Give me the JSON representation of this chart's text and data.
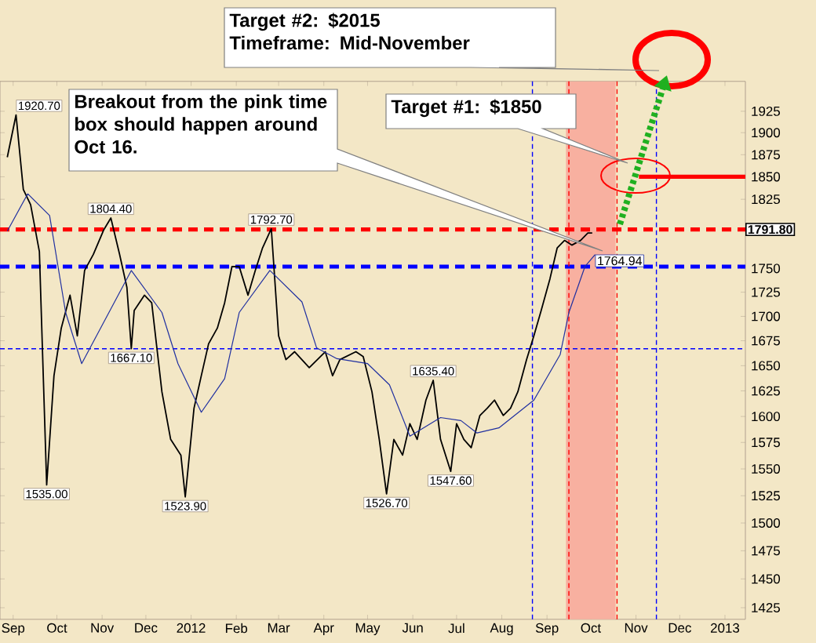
{
  "chart_data": {
    "type": "line",
    "log": true,
    "ylim": [
      1415,
      1960
    ],
    "yticks": [
      1425,
      1450,
      1475,
      1500,
      1525,
      1550,
      1575,
      1600,
      1625,
      1650,
      1675,
      1700,
      1725,
      1750,
      1825,
      1850,
      1875,
      1900,
      1925
    ],
    "xlim": [
      "2011-09-01",
      "2013-01-24"
    ],
    "xticks": [
      {
        "value": "2011-09-10",
        "label": "Sep"
      },
      {
        "value": "2011-10-10",
        "label": "Oct"
      },
      {
        "value": "2011-11-10",
        "label": "Nov"
      },
      {
        "value": "2011-12-10",
        "label": "Dec"
      },
      {
        "value": "2012-01-10",
        "label": "2012"
      },
      {
        "value": "2012-02-10",
        "label": "Feb"
      },
      {
        "value": "2012-03-10",
        "label": "Mar"
      },
      {
        "value": "2012-04-10",
        "label": "Apr"
      },
      {
        "value": "2012-05-10",
        "label": "May"
      },
      {
        "value": "2012-06-10",
        "label": "Jun"
      },
      {
        "value": "2012-07-10",
        "label": "Jul"
      },
      {
        "value": "2012-08-10",
        "label": "Aug"
      },
      {
        "value": "2012-09-10",
        "label": "Sep"
      },
      {
        "value": "2012-10-10",
        "label": "Oct"
      },
      {
        "value": "2012-11-10",
        "label": "Nov"
      },
      {
        "value": "2012-12-10",
        "label": "Dec"
      },
      {
        "value": "2013-01-10",
        "label": "2013"
      }
    ],
    "series": [
      {
        "color": "#000000",
        "x": [
          "2011-09-06",
          "2011-09-12",
          "2011-09-17",
          "2011-09-22",
          "2011-09-28",
          "2011-10-03",
          "2011-10-08",
          "2011-10-13",
          "2011-10-19",
          "2011-10-24",
          "2011-10-29",
          "2011-11-04",
          "2011-11-11",
          "2011-11-16",
          "2011-11-22",
          "2011-11-27",
          "2011-11-30",
          "2011-12-02",
          "2011-12-09",
          "2011-12-14",
          "2011-12-21",
          "2011-12-27",
          "2012-01-03",
          "2012-01-06",
          "2012-01-12",
          "2012-01-17",
          "2012-01-22",
          "2012-01-28",
          "2012-02-02",
          "2012-02-07",
          "2012-02-12",
          "2012-02-18",
          "2012-02-23",
          "2012-02-28",
          "2012-03-05",
          "2012-03-10",
          "2012-03-15",
          "2012-03-21",
          "2012-03-31",
          "2012-04-11",
          "2012-04-16",
          "2012-04-21",
          "2012-05-02",
          "2012-05-07",
          "2012-05-13",
          "2012-05-18",
          "2012-05-23",
          "2012-05-28",
          "2012-06-03",
          "2012-06-08",
          "2012-06-13",
          "2012-06-19",
          "2012-06-24",
          "2012-06-29",
          "2012-07-06",
          "2012-07-10",
          "2012-07-15",
          "2012-07-20",
          "2012-07-26",
          "2012-07-31",
          "2012-08-05",
          "2012-08-11",
          "2012-08-16",
          "2012-08-21",
          "2012-08-27",
          "2012-09-01",
          "2012-09-06",
          "2012-09-12",
          "2012-09-17",
          "2012-09-22",
          "2012-09-27",
          "2012-10-03",
          "2012-10-08",
          "2012-10-11"
        ],
        "values": [
          1872,
          1920.7,
          1836,
          1819,
          1768,
          1535,
          1640,
          1688,
          1722,
          1680,
          1748,
          1765,
          1791,
          1804.4,
          1765,
          1730,
          1667.1,
          1706,
          1722,
          1714,
          1624,
          1578,
          1563,
          1523.9,
          1608,
          1640,
          1672,
          1688,
          1714,
          1752,
          1752,
          1722,
          1748,
          1772,
          1792.7,
          1680,
          1656,
          1664,
          1648,
          1664,
          1640,
          1656,
          1664,
          1659,
          1624,
          1578,
          1526.7,
          1578,
          1563,
          1593,
          1578,
          1616,
          1635.4,
          1578,
          1547.6,
          1593,
          1578,
          1570,
          1601,
          1608,
          1616,
          1601,
          1608,
          1624,
          1656,
          1680,
          1706,
          1739,
          1772,
          1780,
          1775,
          1780,
          1788,
          1788
        ]
      },
      {
        "color": "#2030a0",
        "x": [
          "2011-09-06",
          "2011-09-20",
          "2011-10-05",
          "2011-10-16",
          "2011-10-27",
          "2011-11-30",
          "2011-12-21",
          "2012-01-01",
          "2012-01-17",
          "2012-02-02",
          "2012-02-12",
          "2012-03-04",
          "2012-03-26",
          "2012-04-05",
          "2012-04-19",
          "2012-05-10",
          "2012-05-25",
          "2012-06-08",
          "2012-06-29",
          "2012-07-13",
          "2012-07-24",
          "2012-08-08",
          "2012-09-01",
          "2012-09-19",
          "2012-09-25",
          "2012-10-06",
          "2012-10-13"
        ],
        "values": [
          1790,
          1831,
          1807,
          1704,
          1652,
          1748,
          1704,
          1652,
          1604,
          1637,
          1704,
          1748,
          1715,
          1668,
          1657,
          1652,
          1631,
          1581,
          1599,
          1596,
          1584,
          1589,
          1616,
          1661,
          1704,
          1752,
          1764.94
        ],
        "value_labels": [
          null,
          null,
          null,
          null,
          null,
          null,
          null,
          null,
          null,
          null,
          null,
          null,
          null,
          null,
          null,
          null,
          null,
          null,
          null,
          null,
          null,
          null,
          null,
          null,
          null,
          null,
          "1764.94"
        ]
      },
      {
        "color": "#ff0000",
        "x": [
          "2012-11-12",
          "2013-01-24"
        ],
        "values": [
          1850,
          1850
        ]
      }
    ],
    "ref_lines": [
      {
        "axis": "y",
        "value": 1791.8,
        "label": "1791.80",
        "color": "#ff0000",
        "line_style": "dashed"
      },
      {
        "axis": "y",
        "value": 1752,
        "color": "#0000ff",
        "line_style": "dashed"
      },
      {
        "axis": "y",
        "value": 1667,
        "color": "#0000ff",
        "line_style": "dotted"
      },
      {
        "axis": "x",
        "value": "2012-08-31",
        "color": "#0000ff",
        "line_style": "dotted"
      },
      {
        "axis": "x",
        "value": "2012-09-25",
        "color": "#ff0000",
        "line_style": "dotted"
      },
      {
        "axis": "x",
        "value": "2012-10-28",
        "color": "#ff0000",
        "line_style": "dotted"
      },
      {
        "axis": "x",
        "value": "2012-11-24",
        "color": "#0000ff",
        "line_style": "dotted"
      }
    ],
    "bands": [
      {
        "axis": "x",
        "from": "2012-09-23",
        "to": "2012-10-27",
        "color": "#f8b0a0"
      }
    ],
    "annotations": [
      {
        "text": "1920.70",
        "x": "2011-09-12",
        "y": 1920.7
      },
      {
        "text": "1535.00",
        "x": "2011-10-03",
        "y": 1535
      },
      {
        "text": "1804.40",
        "x": "2011-11-16",
        "y": 1804.4
      },
      {
        "text": "1667.10",
        "x": "2011-11-30",
        "y": 1667.1
      },
      {
        "text": "1523.90",
        "x": "2012-01-06",
        "y": 1523.9
      },
      {
        "text": "1792.70",
        "x": "2012-03-05",
        "y": 1792.7
      },
      {
        "text": "1526.70",
        "x": "2012-05-23",
        "y": 1526.7
      },
      {
        "text": "1635.40",
        "x": "2012-06-24",
        "y": 1635.4
      },
      {
        "text": "1547.60",
        "x": "2012-07-06",
        "y": 1547.6
      },
      "Target #2: $2015",
      "Timeframe: Mid-November",
      "Breakout from the pink time box should happen around Oct 16.",
      "Target #1: $1850"
    ]
  }
}
